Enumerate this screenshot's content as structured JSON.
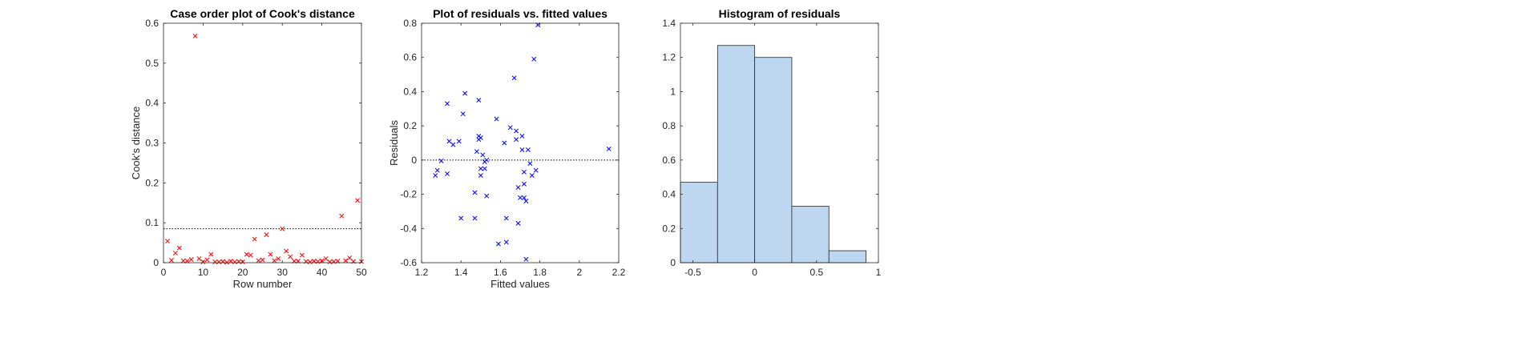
{
  "chart_data": [
    {
      "type": "scatter",
      "title": "Case order plot of Cook's distance",
      "xlabel": "Row number",
      "ylabel": "Cook's distance",
      "xlim": [
        0,
        50
      ],
      "ylim": [
        0,
        0.6
      ],
      "xticks": [
        0,
        10,
        20,
        30,
        40,
        50
      ],
      "yticks": [
        0,
        0.1,
        0.2,
        0.3,
        0.4,
        0.5,
        0.6
      ],
      "grid": false,
      "marker": "x",
      "marker_color": "#ff0000",
      "threshold": 0.085,
      "x": [
        1,
        2,
        3,
        4,
        5,
        6,
        7,
        8,
        9,
        10,
        11,
        12,
        13,
        14,
        15,
        16,
        17,
        18,
        19,
        20,
        21,
        22,
        23,
        24,
        25,
        26,
        27,
        28,
        29,
        30,
        31,
        32,
        33,
        34,
        35,
        36,
        37,
        38,
        39,
        40,
        41,
        42,
        43,
        44,
        45,
        46,
        47,
        48,
        49,
        50
      ],
      "y": [
        0.054,
        0.006,
        0.024,
        0.037,
        0.005,
        0.004,
        0.008,
        0.568,
        0.01,
        0.002,
        0.007,
        0.021,
        0.002,
        0.002,
        0.003,
        0.001,
        0.004,
        0.002,
        0.003,
        0.002,
        0.021,
        0.019,
        0.059,
        0.005,
        0.007,
        0.07,
        0.021,
        0.005,
        0.01,
        0.085,
        0.029,
        0.015,
        0.004,
        0.004,
        0.019,
        0.003,
        0.002,
        0.004,
        0.003,
        0.005,
        0.01,
        0.002,
        0.003,
        0.004,
        0.117,
        0.005,
        0.012,
        0.003,
        0.156,
        0.003
      ]
    },
    {
      "type": "scatter",
      "title": "Plot of residuals vs. fitted values",
      "xlabel": "Fitted values",
      "ylabel": "Residuals",
      "xlim": [
        1.2,
        2.2
      ],
      "ylim": [
        -0.6,
        0.8
      ],
      "xticks": [
        1.2,
        1.4,
        1.6,
        1.8,
        2,
        2.2
      ],
      "yticks": [
        -0.6,
        -0.4,
        -0.2,
        0,
        0.2,
        0.4,
        0.6,
        0.8
      ],
      "grid": false,
      "marker": "x",
      "marker_color": "#0000ff",
      "reference_line": 0,
      "x": [
        1.27,
        1.28,
        1.3,
        1.33,
        1.33,
        1.34,
        1.36,
        1.39,
        1.4,
        1.41,
        1.42,
        1.47,
        1.47,
        1.48,
        1.49,
        1.49,
        1.49,
        1.5,
        1.5,
        1.5,
        1.51,
        1.52,
        1.52,
        1.53,
        1.53,
        1.58,
        1.59,
        1.62,
        1.63,
        1.63,
        1.65,
        1.67,
        1.68,
        1.68,
        1.69,
        1.69,
        1.7,
        1.71,
        1.71,
        1.72,
        1.72,
        1.72,
        1.73,
        1.73,
        1.74,
        1.75,
        1.76,
        1.77,
        1.78,
        1.79,
        2.15
      ],
      "y": [
        -0.09,
        -0.06,
        -0.005,
        0.33,
        -0.08,
        0.11,
        0.09,
        0.11,
        -0.34,
        0.27,
        0.39,
        -0.19,
        -0.34,
        0.05,
        0.35,
        0.12,
        0.14,
        0.13,
        -0.05,
        -0.09,
        0.03,
        -0.01,
        -0.05,
        -0.21,
        0.0,
        0.24,
        -0.49,
        0.1,
        -0.34,
        -0.48,
        0.19,
        0.48,
        0.12,
        0.17,
        -0.16,
        -0.37,
        -0.22,
        0.06,
        0.14,
        -0.07,
        -0.14,
        -0.22,
        -0.24,
        -0.58,
        0.06,
        -0.02,
        -0.09,
        0.59,
        -0.06,
        0.79,
        0.065
      ]
    },
    {
      "type": "bar",
      "title": "Histogram of residuals",
      "xlabel": "",
      "ylabel": "",
      "xlim": [
        -0.6,
        1.0
      ],
      "ylim": [
        0,
        1.4
      ],
      "xticks": [
        -0.5,
        0,
        0.5,
        1
      ],
      "yticks": [
        0,
        0.2,
        0.4,
        0.6,
        0.8,
        1,
        1.2,
        1.4
      ],
      "grid": false,
      "bar_color": "#bed7f0",
      "bin_edges": [
        -0.6,
        -0.3,
        0.0,
        0.3,
        0.6,
        0.9
      ],
      "values": [
        0.47,
        1.27,
        1.2,
        0.33,
        0.07
      ]
    }
  ]
}
